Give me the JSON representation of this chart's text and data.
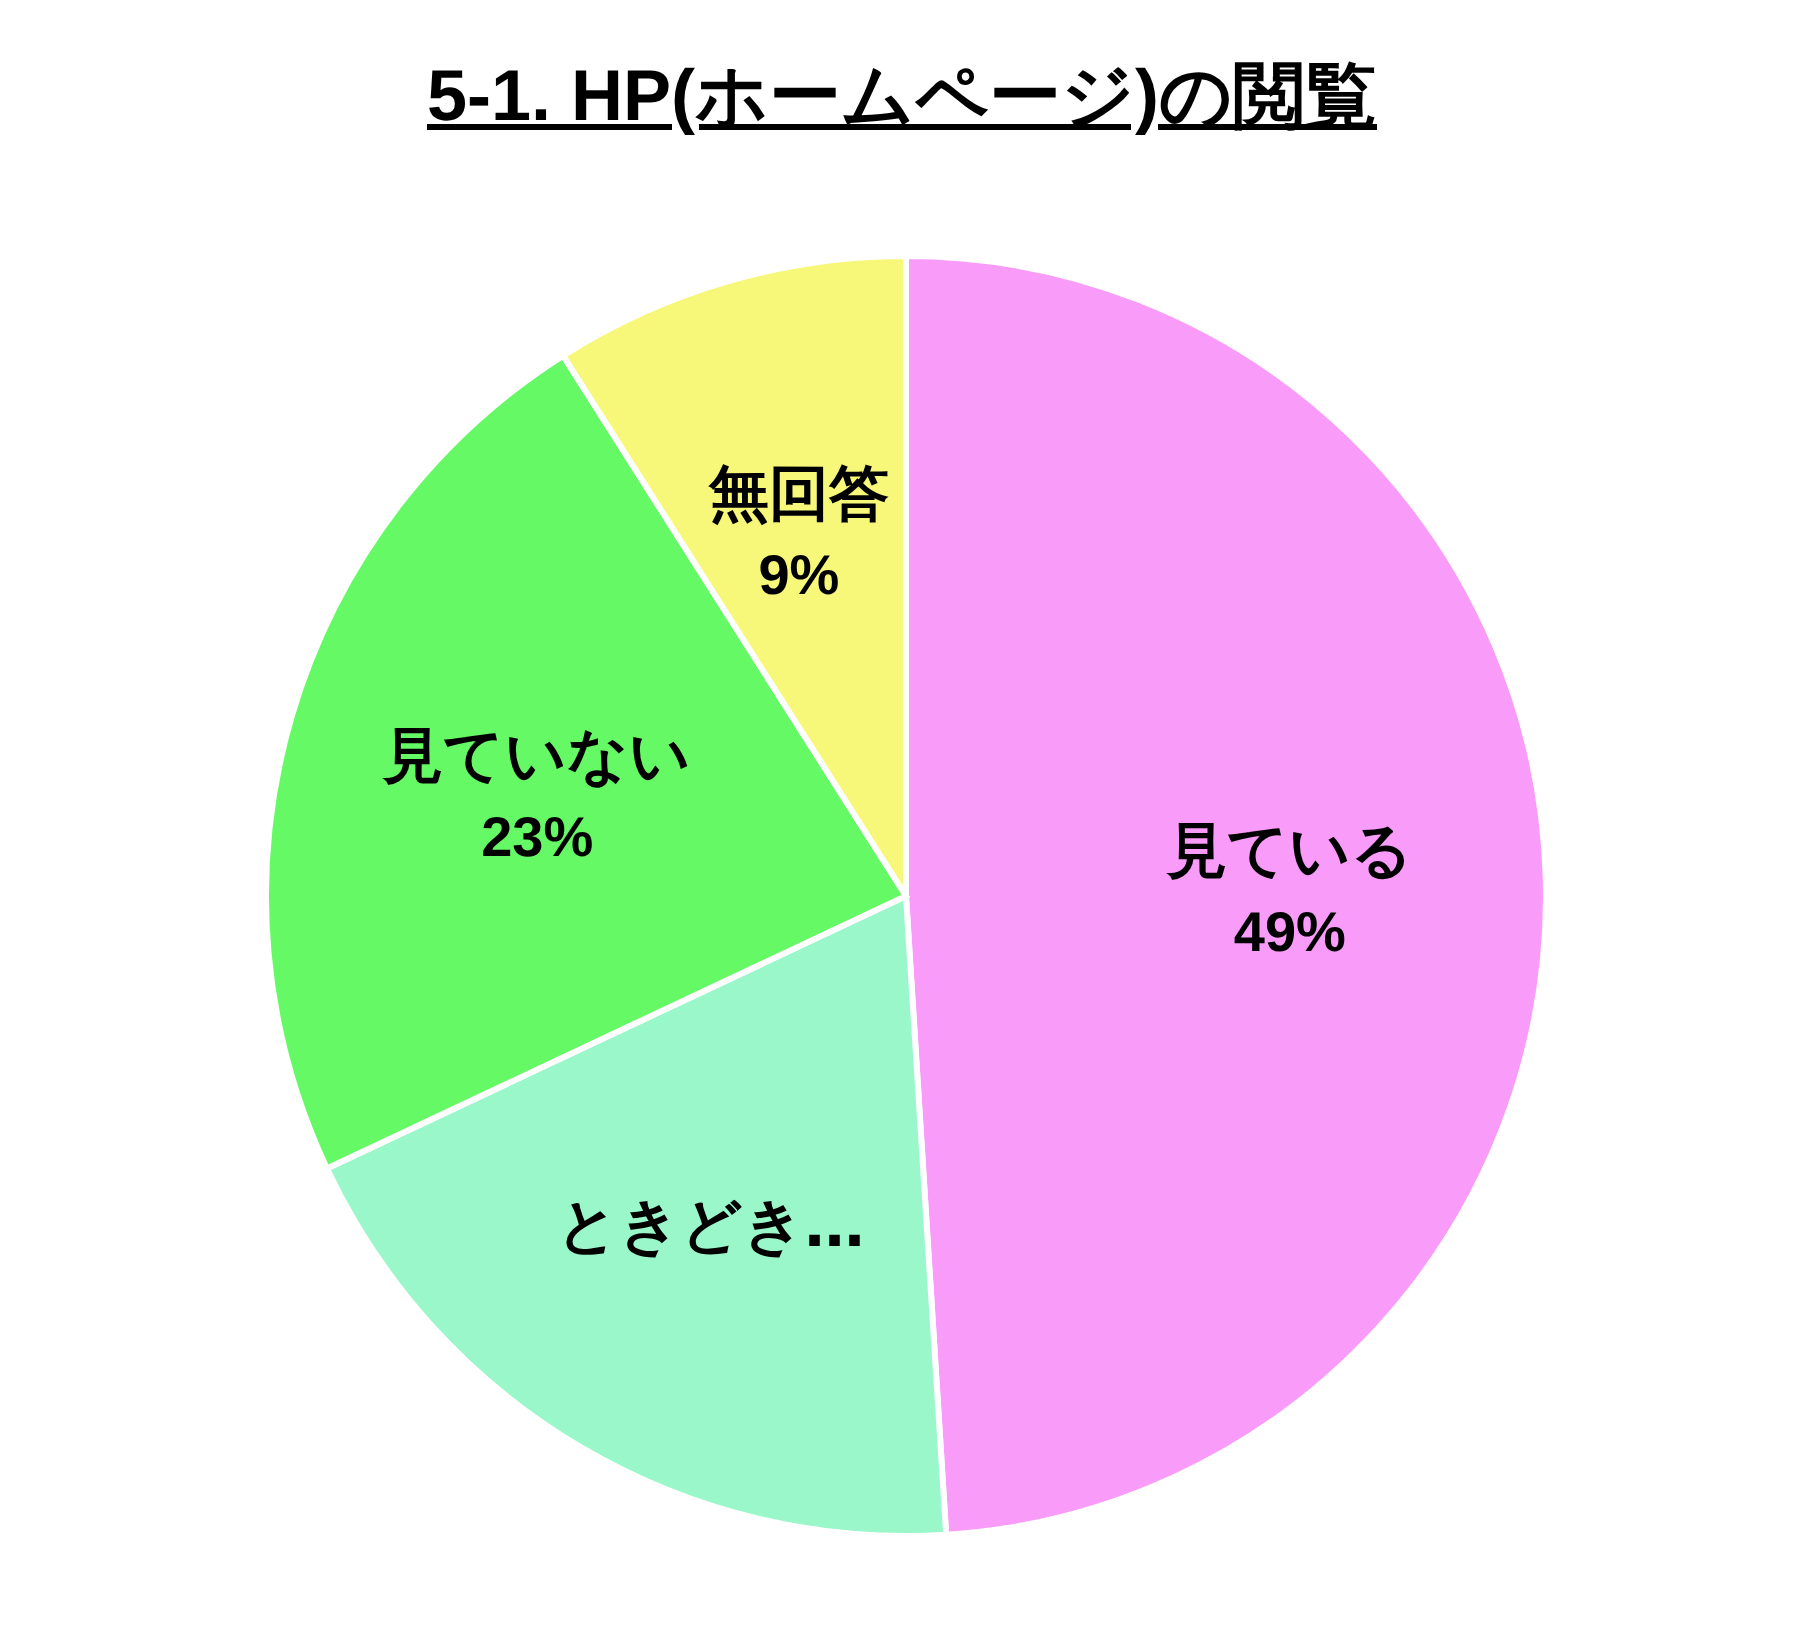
{
  "chart_data": {
    "type": "pie",
    "title": "5-1. HP(ホームページ)の閲覧",
    "categories": [
      "見ている",
      "ときどき…",
      "見ていない",
      "無回答"
    ],
    "values": [
      49,
      19,
      23,
      9
    ],
    "value_labels": [
      "49%",
      null,
      "23%",
      "9%"
    ],
    "colors": [
      "#f99cf9",
      "#99f7c9",
      "#66f966",
      "#f7f77a"
    ]
  }
}
